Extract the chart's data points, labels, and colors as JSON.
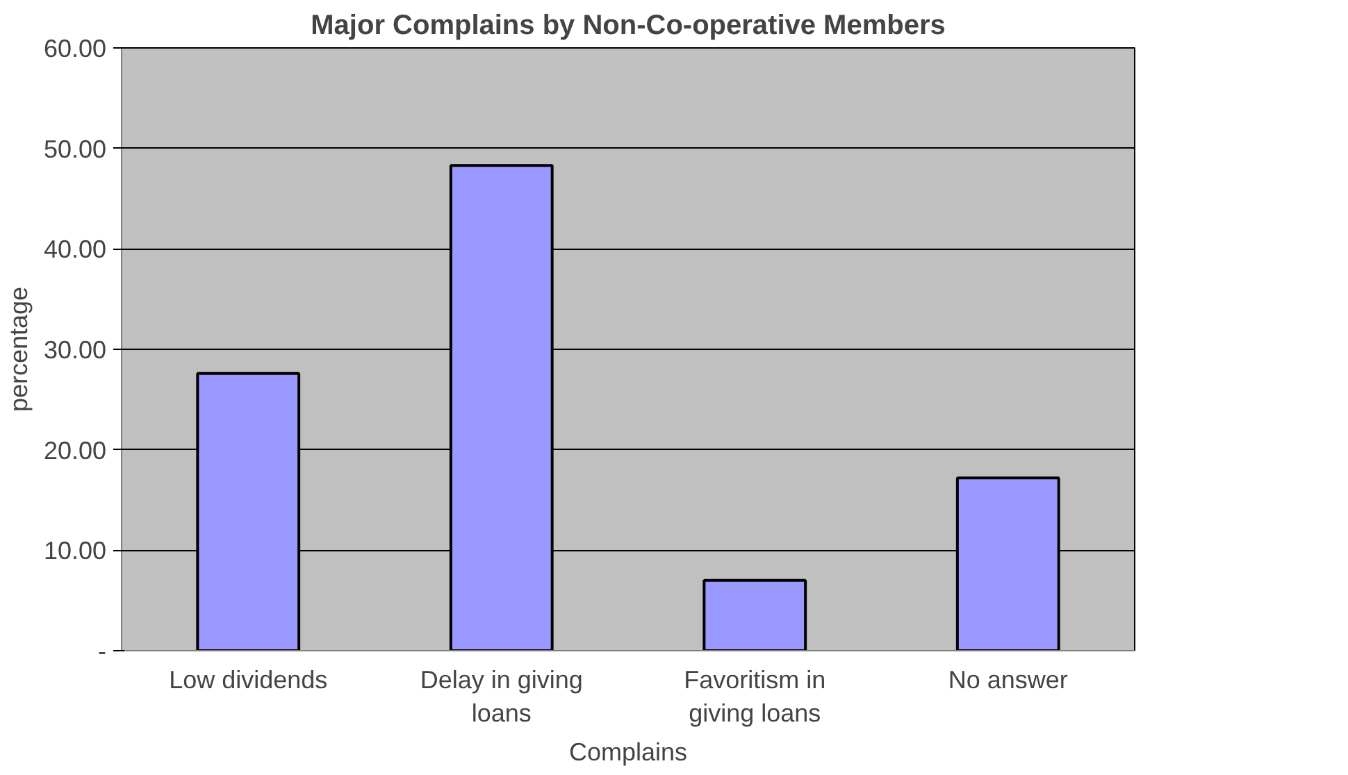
{
  "chart_data": {
    "type": "bar",
    "title": "Major Complains by Non-Co-operative Members",
    "xlabel": "Complains",
    "ylabel": "percentage",
    "categories": [
      "Low dividends",
      "Delay in giving loans",
      "Favoritism in giving loans",
      "No answer"
    ],
    "values": [
      27.6,
      48.3,
      7.0,
      17.2
    ],
    "color": "#9999ff",
    "ylim": [
      0,
      60
    ],
    "yticks": [
      {
        "value": 0,
        "label": "-"
      },
      {
        "value": 10,
        "label": "10.00"
      },
      {
        "value": 20,
        "label": "20.00"
      },
      {
        "value": 30,
        "label": "30.00"
      },
      {
        "value": 40,
        "label": "40.00"
      },
      {
        "value": 50,
        "label": "50.00"
      },
      {
        "value": 60,
        "label": "60.00"
      }
    ],
    "grid": "y"
  }
}
